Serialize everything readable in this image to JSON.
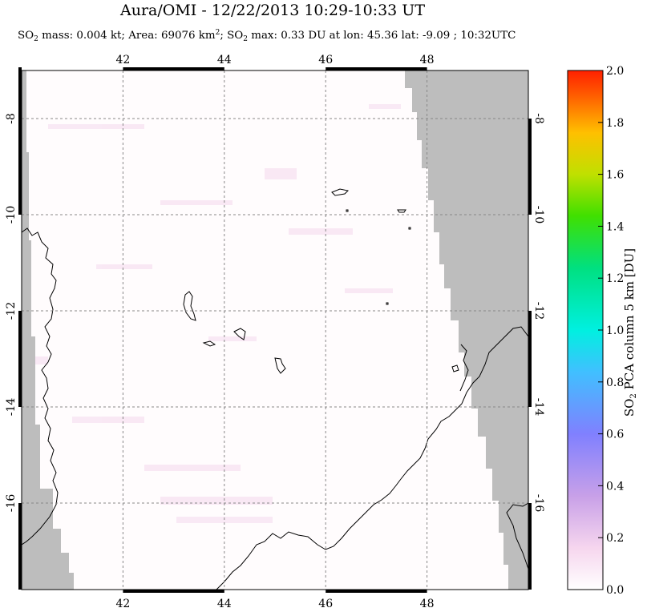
{
  "title": "Aura/OMI - 12/22/2013 10:29-10:33 UT",
  "subtitle": {
    "so2_sub": "2",
    "km_sup": "2",
    "p1": "SO",
    "p2": " mass: 0.004 kt; Area: 69076 km",
    "p3": "; SO",
    "p4": " max: 0.33 DU at lon: 45.36 lat: -9.09 ; 10:32UTC"
  },
  "map": {
    "lon_ticks": [
      "42",
      "44",
      "46",
      "48"
    ],
    "lat_ticks": [
      "-8",
      "-10",
      "-12",
      "-14",
      "-16"
    ],
    "lon_values": [
      42,
      44,
      46,
      48
    ],
    "lat_values": [
      -8,
      -10,
      -12,
      -14,
      -16
    ],
    "lon_range": [
      40.0,
      50.0
    ],
    "lat_range": [
      -17.8,
      -7.0
    ],
    "grid": "dashed",
    "colors": {
      "land_nodata": "#bdbdbd",
      "background": "#fffcfd",
      "coast": "#000000"
    }
  },
  "colorbar": {
    "title_p1": "SO",
    "title_sub": "2",
    "title_p2": " PCA column 5 km [DU]",
    "ticks": [
      "2.0",
      "1.8",
      "1.6",
      "1.4",
      "1.2",
      "1.0",
      "0.8",
      "0.6",
      "0.4",
      "0.2",
      "0.0"
    ],
    "values": [
      2.0,
      1.8,
      1.6,
      1.4,
      1.2,
      1.0,
      0.8,
      0.6,
      0.4,
      0.2,
      0.0
    ],
    "range": [
      0.0,
      2.0
    ],
    "colors": [
      "#ff2200",
      "#ff6600",
      "#ffa800",
      "#e6dc00",
      "#80e000",
      "#00d048",
      "#00e8c0",
      "#30b8ff",
      "#7890ff",
      "#b080e8",
      "#e0a0e8",
      "#ffffff"
    ]
  }
}
